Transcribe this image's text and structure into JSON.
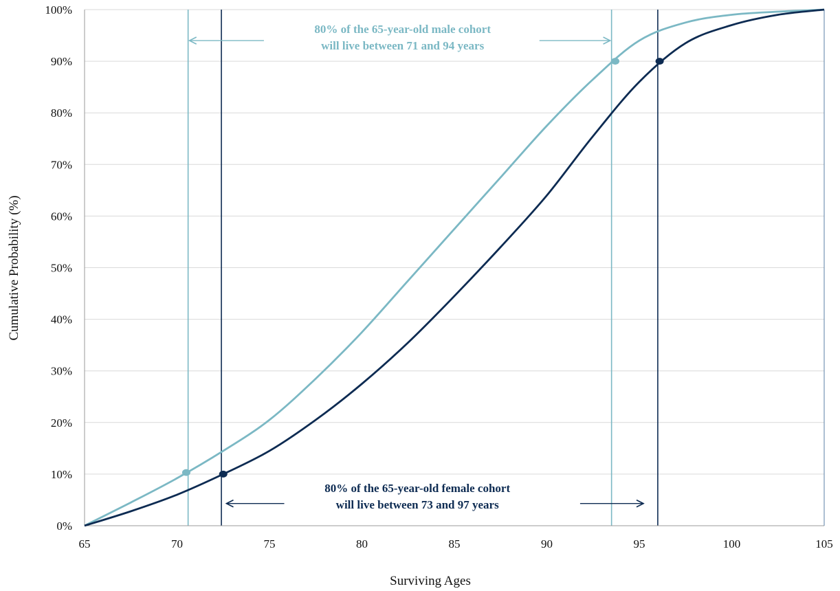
{
  "chart_data": {
    "type": "line",
    "xlabel": "Surviving Ages",
    "ylabel": "Cumulative Probability (%)",
    "xlim": [
      65,
      105
    ],
    "ylim": [
      0,
      100
    ],
    "x_ticks": [
      "65",
      "70",
      "75",
      "80",
      "85",
      "90",
      "95",
      "100",
      "105"
    ],
    "y_ticks": [
      "0%",
      "10%",
      "20%",
      "30%",
      "40%",
      "50%",
      "60%",
      "70%",
      "80%",
      "90%",
      "100%"
    ],
    "grid": "horizontal",
    "series": [
      {
        "key": "male",
        "color": "#7bb8c4",
        "x": [
          65,
          67.5,
          70,
          72.5,
          75,
          77.5,
          80,
          82.5,
          85,
          87.5,
          90,
          92.5,
          95,
          97.5,
          100,
          102.5,
          105
        ],
        "y": [
          0,
          4.5,
          9.2,
          14.5,
          20.5,
          28.5,
          37.5,
          47.5,
          57.5,
          67.5,
          77.5,
          86.5,
          94,
          97.5,
          99,
          99.6,
          100
        ]
      },
      {
        "key": "female",
        "color": "#0d2b52",
        "x": [
          65,
          67.5,
          70,
          72.5,
          75,
          77.5,
          80,
          82.5,
          85,
          87.5,
          90,
          92.5,
          95,
          97.5,
          100,
          102.5,
          105
        ],
        "y": [
          0,
          2.8,
          6,
          10,
          14.5,
          20.5,
          27.5,
          35.5,
          44.5,
          54,
          64,
          75.5,
          86,
          93.5,
          97,
          99,
          100
        ]
      }
    ],
    "markers": [
      {
        "series": "male",
        "x": 70.5,
        "y": 10.3,
        "color": "#7bb8c4"
      },
      {
        "series": "male",
        "x": 93.7,
        "y": 90,
        "color": "#7bb8c4"
      },
      {
        "series": "female",
        "x": 72.5,
        "y": 10,
        "color": "#0d2b52"
      },
      {
        "series": "female",
        "x": 96.1,
        "y": 90,
        "color": "#0d2b52"
      }
    ],
    "vlines": [
      {
        "x": 70.6,
        "color": "#7bb8c4"
      },
      {
        "x": 93.5,
        "color": "#7bb8c4"
      },
      {
        "x": 72.4,
        "color": "#0d2b52"
      },
      {
        "x": 96.0,
        "color": "#0d2b52"
      }
    ],
    "annotations": [
      {
        "key": "male",
        "lines": [
          "80% of the 65-year-old male cohort",
          "will live between 71 and 94 years"
        ],
        "color": "#7bb8c4",
        "anchor_x": 82.2,
        "anchor_y": 95.5,
        "arrow_left": {
          "from": 74.7,
          "to": 70.6,
          "y": 94
        },
        "arrow_right": {
          "from": 89.6,
          "to": 93.5,
          "y": 94
        }
      },
      {
        "key": "female",
        "lines": [
          "80% of the 65-year-old female cohort",
          "will live between 73 and 97 years"
        ],
        "color": "#0d2b52",
        "anchor_x": 83.0,
        "anchor_y": 6.5,
        "arrow_left": {
          "from": 75.8,
          "to": 72.6,
          "y": 4.3
        },
        "arrow_right": {
          "from": 91.8,
          "to": 95.3,
          "y": 4.3
        }
      }
    ]
  }
}
